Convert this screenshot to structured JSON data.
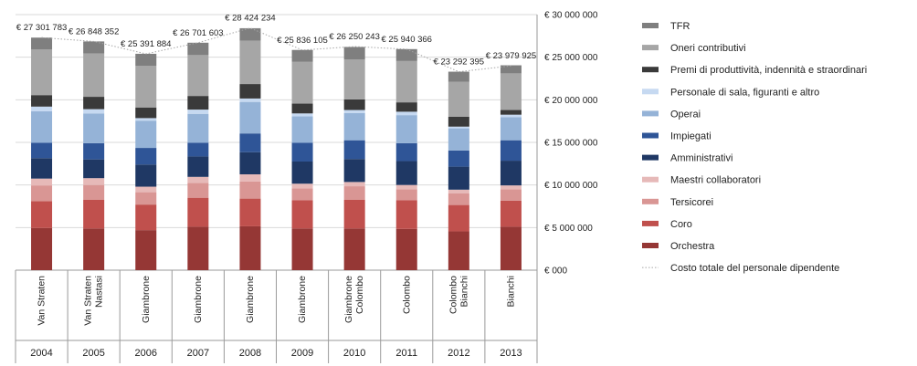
{
  "chart_data": {
    "type": "bar",
    "stacked": true,
    "categories": [
      {
        "year": "2004",
        "name": [
          "Van Straten"
        ]
      },
      {
        "year": "2005",
        "name": [
          "Van Straten",
          "Nastasi"
        ]
      },
      {
        "year": "2006",
        "name": [
          "Giambrone"
        ]
      },
      {
        "year": "2007",
        "name": [
          "Giambrone"
        ]
      },
      {
        "year": "2008",
        "name": [
          "Giambrone"
        ]
      },
      {
        "year": "2009",
        "name": [
          "Giambrone"
        ]
      },
      {
        "year": "2010",
        "name": [
          "Giambrone",
          "Colombo"
        ]
      },
      {
        "year": "2011",
        "name": [
          "Colombo"
        ]
      },
      {
        "year": "2012",
        "name": [
          "Colombo",
          "Bianchi"
        ]
      },
      {
        "year": "2013",
        "name": [
          "Bianchi"
        ]
      }
    ],
    "series": [
      {
        "name": "Orchestra",
        "color": "#953735",
        "values": [
          4950000,
          4900000,
          4700000,
          5100000,
          5150000,
          4900000,
          4900000,
          4850000,
          4550000,
          5100000
        ]
      },
      {
        "name": "Coro",
        "color": "#c0504d",
        "values": [
          3150000,
          3350000,
          3000000,
          3400000,
          3250000,
          3300000,
          3350000,
          3350000,
          3100000,
          3050000
        ]
      },
      {
        "name": "Tersicorei",
        "color": "#d99694",
        "values": [
          1850000,
          1750000,
          1450000,
          1750000,
          2000000,
          1400000,
          1600000,
          1300000,
          1350000,
          1350000
        ]
      },
      {
        "name": "Maestri collaboratori",
        "color": "#e6b9b8",
        "values": [
          800000,
          800000,
          650000,
          700000,
          850000,
          550000,
          500000,
          500000,
          450000,
          450000
        ]
      },
      {
        "name": "Amministrativi",
        "color": "#1f3864",
        "values": [
          2400000,
          2200000,
          2600000,
          2400000,
          2600000,
          2600000,
          2700000,
          2800000,
          2700000,
          2900000
        ]
      },
      {
        "name": "Impiegati",
        "color": "#2f5597",
        "values": [
          1800000,
          1900000,
          1950000,
          1600000,
          2200000,
          2200000,
          2200000,
          2100000,
          1900000,
          2400000
        ]
      },
      {
        "name": "Operai",
        "color": "#95b3d7",
        "values": [
          3700000,
          3500000,
          3200000,
          3400000,
          3700000,
          3100000,
          3200000,
          3300000,
          2600000,
          2700000
        ]
      },
      {
        "name": "Personale di sala, figuranti e altro",
        "color": "#c6d9f1",
        "values": [
          550000,
          500000,
          300000,
          500000,
          400000,
          350000,
          350000,
          400000,
          200000,
          300000
        ]
      },
      {
        "name": "Premi di produttività, indennità e straordinari",
        "color": "#3a3a3a",
        "values": [
          1350000,
          1450000,
          1250000,
          1600000,
          1700000,
          1150000,
          1250000,
          1100000,
          1150000,
          550000
        ]
      },
      {
        "name": "Oneri contributivi",
        "color": "#a6a6a6",
        "values": [
          5350000,
          5100000,
          4900000,
          4800000,
          5100000,
          4900000,
          4700000,
          4850000,
          4100000,
          4300000
        ]
      },
      {
        "name": "TFR",
        "color": "#7f7f7f",
        "values": [
          1400000,
          1400000,
          1400000,
          1450000,
          1450000,
          1400000,
          1450000,
          1400000,
          1200000,
          950000
        ]
      }
    ],
    "line": {
      "name": "Costo totale del personale dipendente",
      "values": [
        27301783,
        26848352,
        25391884,
        26701603,
        28424234,
        25836105,
        26250243,
        25940366,
        23292395,
        23979925
      ],
      "labels": [
        "€ 27 301 783",
        "€ 26 848 352",
        "€ 25 391 884",
        "€ 26 701 603",
        "€ 28 424 234",
        "€ 25 836 105",
        "€ 26 250 243",
        "€ 25 940 366",
        "€ 23 292 395",
        "€ 23 979 925"
      ]
    },
    "ylim": [
      0,
      30000000
    ],
    "yticks": [
      {
        "value": 0,
        "label": "€ 000"
      },
      {
        "value": 5000000,
        "label": "€ 5 000 000"
      },
      {
        "value": 10000000,
        "label": "€ 10 000 000"
      },
      {
        "value": 15000000,
        "label": "€ 15 000 000"
      },
      {
        "value": 20000000,
        "label": "€ 20 000 000"
      },
      {
        "value": 25000000,
        "label": "€ 25 000 000"
      },
      {
        "value": 30000000,
        "label": "€ 30 000 000"
      }
    ],
    "y_axis_position": "right",
    "grid": true,
    "legend": "right",
    "legend_order": [
      "TFR",
      "Oneri contributivi",
      "Premi di produttività, indennità e straordinari",
      "Personale di sala, figuranti e altro",
      "Operai",
      "Impiegati",
      "Amministrativi",
      "Maestri collaboratori",
      "Tersicorei",
      "Coro",
      "Orchestra",
      "Costo totale del personale dipendente"
    ]
  }
}
